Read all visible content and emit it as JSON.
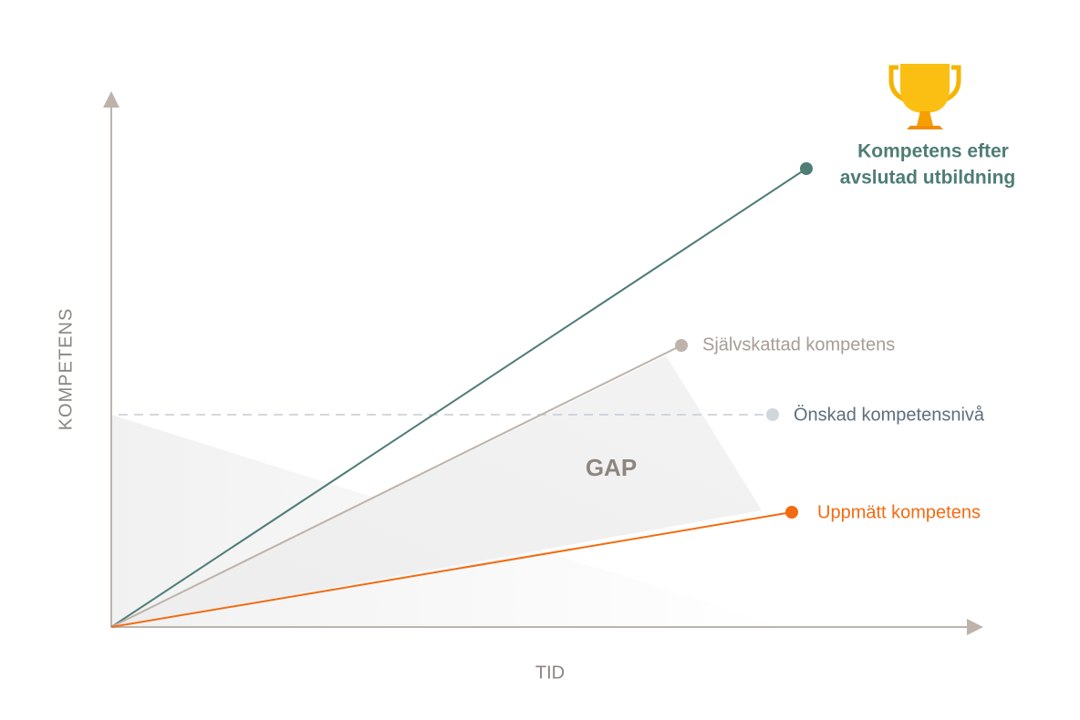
{
  "axes": {
    "y_label": "KOMPETENS",
    "x_label": "TID"
  },
  "gap_label": "GAP",
  "lines": [
    {
      "label_lines": [
        "Kompetens efter",
        "avslutad utbildning"
      ]
    },
    {
      "label_lines": [
        "Självskattad kompetens"
      ]
    },
    {
      "label_lines": [
        "Önskad kompetensnivå"
      ]
    },
    {
      "label_lines": [
        "Uppmätt kompetens"
      ]
    }
  ]
}
